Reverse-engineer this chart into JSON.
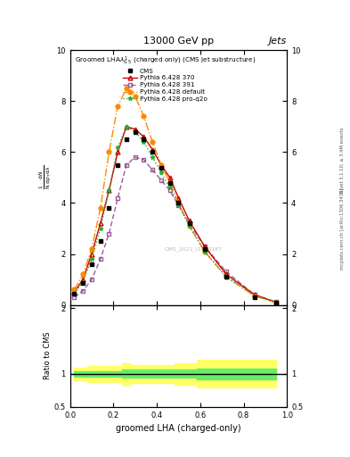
{
  "title_top": "13000 GeV pp",
  "title_right": "Jets",
  "plot_title": "Groomed LHA$\\lambda^1_{0.5}$ (charged only) (CMS jet substructure)",
  "xlabel": "groomed LHA (charged-only)",
  "ylabel_ratio": "Ratio to CMS",
  "watermark": "CMS_2021_I1920187",
  "right_label_top": "Rivet 3.1.10; ≥ 3.4M events",
  "right_label_bot": "mcplots.cern.ch [arXiv:1306.3436]",
  "x_data": [
    0.02,
    0.06,
    0.1,
    0.14,
    0.18,
    0.22,
    0.26,
    0.3,
    0.34,
    0.38,
    0.42,
    0.46,
    0.5,
    0.55,
    0.62,
    0.72,
    0.85,
    0.95
  ],
  "cms_data": [
    0.45,
    0.85,
    1.6,
    2.5,
    3.8,
    5.5,
    6.5,
    6.8,
    6.5,
    6.0,
    5.4,
    4.8,
    4.0,
    3.2,
    2.2,
    1.1,
    0.3,
    0.08
  ],
  "py370_data": [
    0.5,
    1.0,
    2.0,
    3.2,
    4.5,
    6.0,
    7.0,
    6.9,
    6.6,
    6.1,
    5.5,
    5.0,
    4.2,
    3.3,
    2.3,
    1.2,
    0.4,
    0.1
  ],
  "py391_data": [
    0.3,
    0.55,
    1.0,
    1.8,
    2.8,
    4.2,
    5.5,
    5.8,
    5.7,
    5.3,
    4.9,
    4.5,
    3.9,
    3.2,
    2.3,
    1.3,
    0.4,
    0.12
  ],
  "pydef_data": [
    0.6,
    1.2,
    2.2,
    3.8,
    6.0,
    7.8,
    8.5,
    8.2,
    7.4,
    6.4,
    5.5,
    4.8,
    4.0,
    3.1,
    2.1,
    1.1,
    0.35,
    0.09
  ],
  "pyproq2o_data": [
    0.45,
    0.9,
    1.8,
    3.0,
    4.5,
    6.2,
    7.0,
    6.8,
    6.4,
    5.8,
    5.2,
    4.6,
    3.9,
    3.1,
    2.1,
    1.1,
    0.35,
    0.09
  ],
  "cms_color": "#000000",
  "py370_color": "#cc0000",
  "py391_color": "#884488",
  "pydef_color": "#ff8800",
  "pyproq2o_color": "#33aa33",
  "ylim_main": [
    0,
    10
  ],
  "ylim_ratio": [
    0.5,
    2.05
  ],
  "yticks_main": [
    0,
    2,
    4,
    6,
    8,
    10
  ],
  "yticks_ratio": [
    0.5,
    1.0,
    2.0
  ],
  "green_band_lo": [
    0.96,
    0.96,
    0.96,
    0.96,
    0.96,
    0.96,
    0.94,
    0.94,
    0.94,
    0.94,
    0.94,
    0.94,
    0.94,
    0.94,
    0.92,
    0.92,
    0.92,
    0.92
  ],
  "green_band_hi": [
    1.04,
    1.04,
    1.04,
    1.04,
    1.04,
    1.04,
    1.06,
    1.06,
    1.06,
    1.06,
    1.06,
    1.06,
    1.06,
    1.06,
    1.08,
    1.08,
    1.08,
    1.08
  ],
  "yellow_band_lo": [
    0.9,
    0.9,
    0.88,
    0.88,
    0.88,
    0.88,
    0.84,
    0.86,
    0.86,
    0.86,
    0.86,
    0.86,
    0.84,
    0.84,
    0.79,
    0.79,
    0.79,
    0.79
  ],
  "yellow_band_hi": [
    1.1,
    1.1,
    1.12,
    1.12,
    1.12,
    1.12,
    1.16,
    1.14,
    1.14,
    1.14,
    1.14,
    1.14,
    1.16,
    1.16,
    1.21,
    1.21,
    1.21,
    1.21
  ]
}
